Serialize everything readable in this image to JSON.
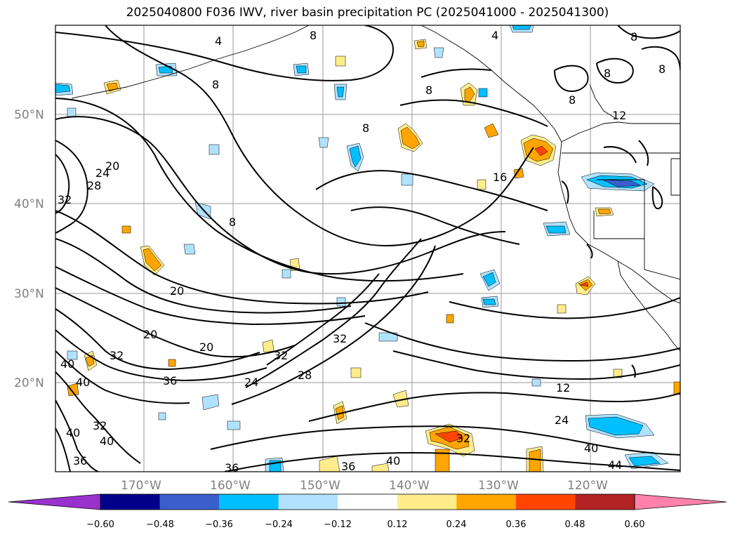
{
  "title": "2025040800 F036 IWV, river basin precipitation PC (2025041000 - 2025041300)",
  "latitudes": [
    "50°N",
    "40°N",
    "30°N",
    "20°N"
  ],
  "longitudes": [
    "170°W",
    "160°W",
    "150°W",
    "140°W",
    "130°W",
    "120°W"
  ],
  "colorbar": {
    "ticks": [
      "−0.60",
      "−0.48",
      "−0.36",
      "−0.24",
      "−0.12",
      "0.12",
      "0.24",
      "0.36",
      "0.48",
      "0.60"
    ],
    "colors": [
      "#9932cc",
      "#00008b",
      "#3a5fcd",
      "#00bfff",
      "#b0e2ff",
      "#ffffff",
      "#ffec8b",
      "#ffa500",
      "#ff4500",
      "#b22222",
      "#ff82ab"
    ]
  },
  "contour_labels": [
    "4",
    "4",
    "8",
    "8",
    "8",
    "8",
    "8",
    "8",
    "8",
    "8",
    "8",
    "16",
    "12",
    "24",
    "40",
    "44",
    "12",
    "20",
    "20",
    "20",
    "24",
    "28",
    "32",
    "32",
    "32",
    "36",
    "40",
    "40",
    "40",
    "32",
    "40",
    "36",
    "36",
    "36",
    "40",
    "32",
    "20",
    "24",
    "28",
    "32"
  ]
}
